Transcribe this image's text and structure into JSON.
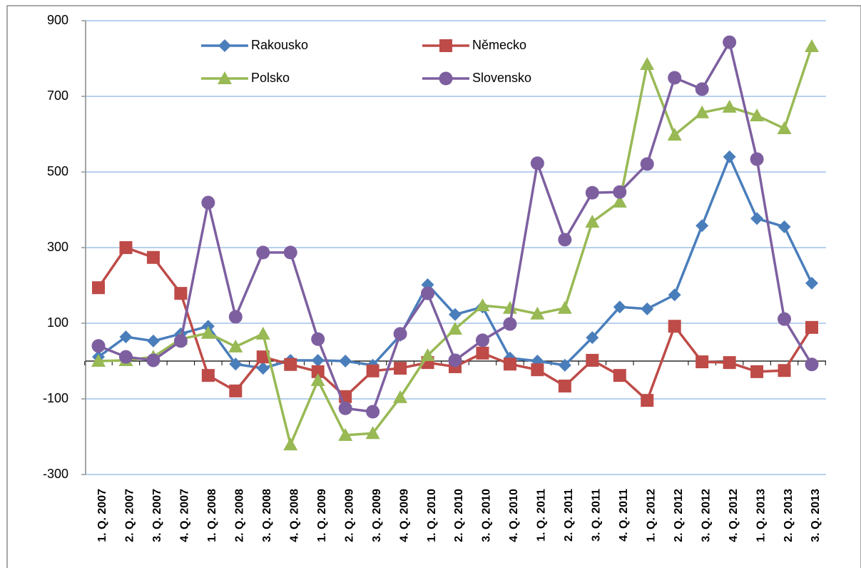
{
  "chart_data": {
    "type": "line",
    "categories": [
      "1. Q. 2007",
      "2. Q. 2007",
      "3. Q. 2007",
      "4. Q. 2007",
      "1. Q. 2008",
      "2. Q. 2008",
      "3. Q. 2008",
      "4. Q. 2008",
      "1. Q. 2009",
      "2. Q. 2009",
      "3. Q. 2009",
      "4. Q. 2009",
      "1. Q. 2010",
      "2. Q. 2010",
      "3. Q. 2010",
      "4. Q. 2010",
      "1. Q. 2011",
      "2. Q. 2011",
      "3. Q. 2011",
      "4. Q. 2011",
      "1. Q. 2012",
      "2. Q. 2012",
      "3. Q. 2012",
      "4. Q. 2012",
      "1. Q. 2013",
      "2. Q. 2013",
      "3. Q. 2013"
    ],
    "series": [
      {
        "name": "Rakousko",
        "color": "#4a7ebb",
        "marker": "diamond",
        "values": [
          11,
          64,
          53,
          72,
          92,
          -8,
          -19,
          2,
          2,
          0,
          -11,
          68,
          202,
          123,
          143,
          8,
          0,
          -11,
          62,
          143,
          138,
          175,
          358,
          540,
          377,
          355,
          206
        ]
      },
      {
        "name": "Německo",
        "color": "#be4b48",
        "marker": "square",
        "values": [
          194,
          300,
          274,
          179,
          -38,
          -79,
          11,
          -9,
          -28,
          -94,
          -26,
          -19,
          -4,
          -15,
          21,
          -8,
          -23,
          -66,
          2,
          -38,
          -104,
          92,
          -2,
          -4,
          -28,
          -25,
          89
        ]
      },
      {
        "name": "Polsko",
        "color": "#98b954",
        "marker": "triangle",
        "values": [
          0,
          2,
          11,
          58,
          74,
          38,
          72,
          -221,
          -51,
          -196,
          -191,
          -96,
          15,
          85,
          147,
          140,
          125,
          140,
          368,
          421,
          785,
          598,
          657,
          672,
          649,
          615,
          832
        ]
      },
      {
        "name": "Slovensko",
        "color": "#7d5fa0",
        "marker": "circle",
        "values": [
          40,
          11,
          2,
          53,
          419,
          117,
          287,
          287,
          58,
          -125,
          -134,
          72,
          179,
          2,
          55,
          98,
          523,
          321,
          445,
          447,
          521,
          749,
          719,
          843,
          534,
          111,
          -9
        ]
      }
    ],
    "ylim": [
      -300,
      900
    ],
    "yticks": [
      -300,
      -100,
      100,
      300,
      500,
      700,
      900
    ],
    "grid": true
  }
}
